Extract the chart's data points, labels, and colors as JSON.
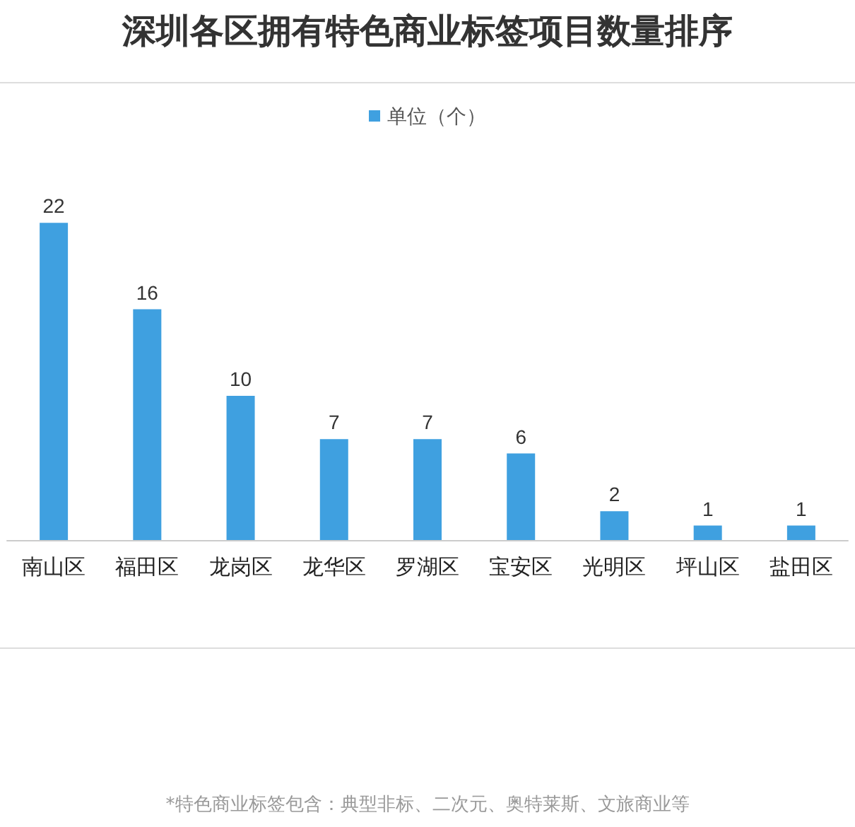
{
  "chart_data": {
    "type": "bar",
    "title": "深圳各区拥有特色商业标签项目数量排序",
    "categories": [
      "南山区",
      "福田区",
      "龙岗区",
      "龙华区",
      "罗湖区",
      "宝安区",
      "光明区",
      "坪山区",
      "盐田区"
    ],
    "series": [
      {
        "name": "单位（个）",
        "color": "#3fa0e0",
        "values": [
          22,
          16,
          10,
          7,
          7,
          6,
          2,
          1,
          1
        ]
      }
    ],
    "data_labels": true,
    "legend": "top",
    "annotations": [
      "*特色商业标签包含：典型非标、二次元、奥特莱斯、文旅商业等"
    ]
  }
}
